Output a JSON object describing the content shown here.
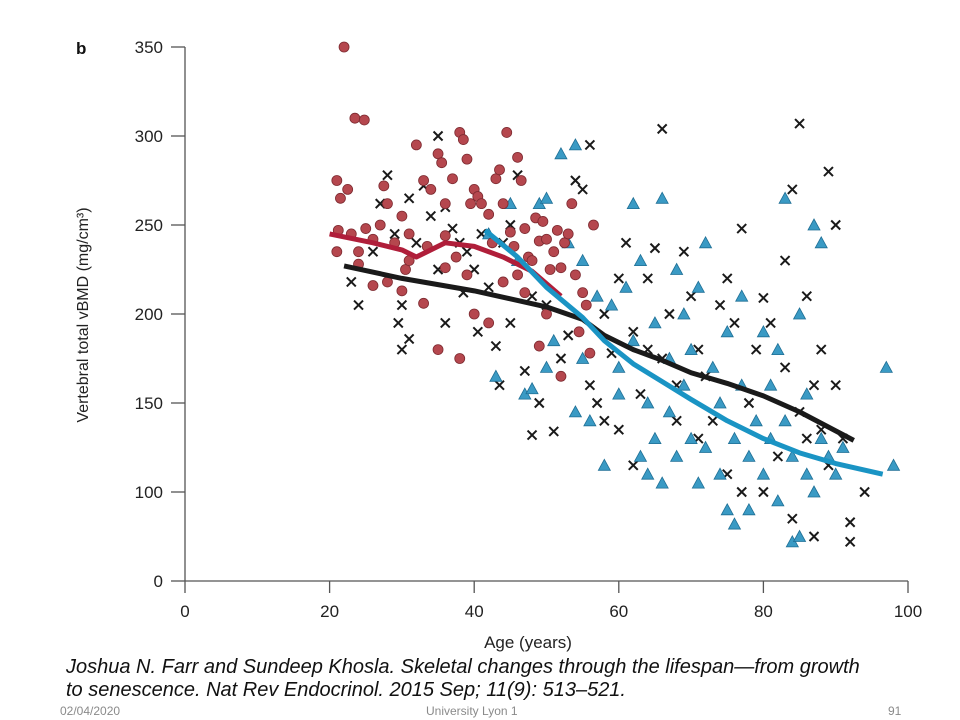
{
  "panel_label": "b",
  "chart_data": {
    "type": "scatter",
    "xlabel": "Age (years)",
    "ylabel": "Vertebral total vBMD (mg/cm³)",
    "xlim": [
      0,
      100
    ],
    "ylim": [
      0,
      350
    ],
    "y_axis_break": "between 0 and 100",
    "xticks": [
      0,
      20,
      40,
      60,
      80,
      100
    ],
    "yticks": [
      0,
      100,
      150,
      200,
      250,
      300,
      350
    ],
    "grid": false,
    "colors": {
      "circles": "#b5474e",
      "crosses": "#1a1a1a",
      "triangles": "#3a9ac4",
      "red_line": "#b01e3a",
      "black_line": "#1a1a1a",
      "blue_line": "#1a94c4"
    },
    "series": [
      {
        "marker": "circle",
        "color": "#b5474e",
        "points": [
          [
            22,
            350
          ],
          [
            23.5,
            310
          ],
          [
            24.8,
            309
          ],
          [
            21,
            275
          ],
          [
            21.5,
            265
          ],
          [
            21.2,
            247
          ],
          [
            22.5,
            270
          ],
          [
            21,
            235
          ],
          [
            23,
            245
          ],
          [
            24,
            235
          ],
          [
            25,
            248
          ],
          [
            26,
            242
          ],
          [
            27,
            250
          ],
          [
            27.5,
            272
          ],
          [
            28,
            262
          ],
          [
            29,
            240
          ],
          [
            30,
            255
          ],
          [
            30.5,
            225
          ],
          [
            31,
            245
          ],
          [
            32,
            295
          ],
          [
            33,
            275
          ],
          [
            33.5,
            238
          ],
          [
            34,
            270
          ],
          [
            35,
            290
          ],
          [
            35.5,
            285
          ],
          [
            36,
            262
          ],
          [
            36,
            244
          ],
          [
            37,
            276
          ],
          [
            37.5,
            232
          ],
          [
            38,
            302
          ],
          [
            38.5,
            298
          ],
          [
            39,
            287
          ],
          [
            39.5,
            262
          ],
          [
            40,
            270
          ],
          [
            40.5,
            266
          ],
          [
            41,
            262
          ],
          [
            42,
            256
          ],
          [
            42.5,
            240
          ],
          [
            43,
            276
          ],
          [
            43.5,
            281
          ],
          [
            44,
            262
          ],
          [
            44.5,
            302
          ],
          [
            45,
            246
          ],
          [
            45.5,
            238
          ],
          [
            46,
            288
          ],
          [
            46.5,
            275
          ],
          [
            47,
            248
          ],
          [
            47.5,
            232
          ],
          [
            48,
            230
          ],
          [
            48.5,
            254
          ],
          [
            49,
            241
          ],
          [
            49.5,
            252
          ],
          [
            50,
            242
          ],
          [
            50.5,
            225
          ],
          [
            51,
            235
          ],
          [
            51.5,
            247
          ],
          [
            52,
            226
          ],
          [
            52.5,
            240
          ],
          [
            53,
            245
          ],
          [
            53.5,
            262
          ],
          [
            54,
            222
          ],
          [
            55,
            212
          ],
          [
            55.5,
            205
          ],
          [
            56,
            178
          ],
          [
            54.5,
            190
          ],
          [
            56.5,
            250
          ],
          [
            44,
            218
          ],
          [
            42,
            195
          ],
          [
            40,
            200
          ],
          [
            38,
            175
          ],
          [
            35,
            180
          ],
          [
            33,
            206
          ],
          [
            30,
            213
          ],
          [
            28,
            218
          ],
          [
            26,
            216
          ],
          [
            24,
            228
          ],
          [
            31,
            230
          ],
          [
            36,
            226
          ],
          [
            39,
            222
          ],
          [
            46,
            222
          ],
          [
            49,
            182
          ],
          [
            52,
            165
          ],
          [
            50,
            200
          ],
          [
            47,
            212
          ]
        ]
      },
      {
        "marker": "cross",
        "color": "#1a1a1a",
        "points": [
          [
            23,
            218
          ],
          [
            24,
            205
          ],
          [
            26,
            235
          ],
          [
            27,
            262
          ],
          [
            28,
            278
          ],
          [
            29,
            245
          ],
          [
            29.5,
            195
          ],
          [
            30,
            180
          ],
          [
            31,
            186
          ],
          [
            30,
            205
          ],
          [
            31,
            265
          ],
          [
            32,
            240
          ],
          [
            33,
            272
          ],
          [
            34,
            255
          ],
          [
            35,
            300
          ],
          [
            35,
            225
          ],
          [
            36,
            260
          ],
          [
            36,
            195
          ],
          [
            37,
            248
          ],
          [
            38,
            240
          ],
          [
            38.5,
            212
          ],
          [
            39,
            235
          ],
          [
            40,
            225
          ],
          [
            40.5,
            190
          ],
          [
            41,
            245
          ],
          [
            42,
            215
          ],
          [
            43,
            182
          ],
          [
            43.5,
            160
          ],
          [
            44,
            240
          ],
          [
            45,
            250
          ],
          [
            45,
            195
          ],
          [
            46,
            278
          ],
          [
            47,
            168
          ],
          [
            48,
            210
          ],
          [
            48,
            132
          ],
          [
            49,
            150
          ],
          [
            50,
            205
          ],
          [
            51,
            134
          ],
          [
            52,
            175
          ],
          [
            53,
            188
          ],
          [
            54,
            275
          ],
          [
            55,
            270
          ],
          [
            56,
            295
          ],
          [
            56,
            160
          ],
          [
            57,
            150
          ],
          [
            58,
            200
          ],
          [
            59,
            178
          ],
          [
            60,
            135
          ],
          [
            60,
            220
          ],
          [
            61,
            240
          ],
          [
            62,
            190
          ],
          [
            63,
            155
          ],
          [
            64,
            220
          ],
          [
            65,
            237
          ],
          [
            66,
            304
          ],
          [
            66,
            175
          ],
          [
            67,
            200
          ],
          [
            68,
            160
          ],
          [
            68,
            140
          ],
          [
            69,
            235
          ],
          [
            70,
            210
          ],
          [
            71,
            180
          ],
          [
            72,
            165
          ],
          [
            73,
            140
          ],
          [
            74,
            205
          ],
          [
            75,
            220
          ],
          [
            76,
            195
          ],
          [
            77,
            248
          ],
          [
            77,
            100
          ],
          [
            78,
            150
          ],
          [
            79,
            180
          ],
          [
            80,
            209
          ],
          [
            80,
            100
          ],
          [
            81,
            195
          ],
          [
            82,
            120
          ],
          [
            83,
            230
          ],
          [
            83,
            170
          ],
          [
            84,
            270
          ],
          [
            84,
            85
          ],
          [
            85,
            307
          ],
          [
            85,
            145
          ],
          [
            86,
            130
          ],
          [
            86,
            210
          ],
          [
            87,
            75
          ],
          [
            87,
            160
          ],
          [
            88,
            180
          ],
          [
            88,
            135
          ],
          [
            89,
            280
          ],
          [
            89,
            115
          ],
          [
            90,
            160
          ],
          [
            90,
            250
          ],
          [
            91,
            130
          ],
          [
            92,
            83
          ],
          [
            92,
            72
          ],
          [
            94,
            100
          ],
          [
            71,
            130
          ],
          [
            64,
            180
          ],
          [
            58,
            140
          ],
          [
            62,
            115
          ],
          [
            75,
            110
          ]
        ]
      },
      {
        "marker": "triangle",
        "color": "#3a9ac4",
        "points": [
          [
            42,
            245
          ],
          [
            43,
            165
          ],
          [
            45,
            262
          ],
          [
            46,
            230
          ],
          [
            47,
            155
          ],
          [
            48,
            158
          ],
          [
            49,
            262
          ],
          [
            50,
            265
          ],
          [
            50,
            170
          ],
          [
            51,
            185
          ],
          [
            52,
            290
          ],
          [
            53,
            240
          ],
          [
            54,
            295
          ],
          [
            54,
            145
          ],
          [
            55,
            230
          ],
          [
            55,
            175
          ],
          [
            56,
            140
          ],
          [
            57,
            210
          ],
          [
            58,
            115
          ],
          [
            59,
            205
          ],
          [
            60,
            170
          ],
          [
            61,
            215
          ],
          [
            62,
            262
          ],
          [
            62,
            185
          ],
          [
            63,
            120
          ],
          [
            63,
            230
          ],
          [
            64,
            150
          ],
          [
            65,
            195
          ],
          [
            65,
            130
          ],
          [
            66,
            265
          ],
          [
            66,
            105
          ],
          [
            67,
            175
          ],
          [
            67,
            145
          ],
          [
            68,
            225
          ],
          [
            68,
            120
          ],
          [
            69,
            200
          ],
          [
            69,
            160
          ],
          [
            70,
            130
          ],
          [
            70,
            180
          ],
          [
            71,
            215
          ],
          [
            72,
            125
          ],
          [
            72,
            240
          ],
          [
            73,
            170
          ],
          [
            74,
            150
          ],
          [
            74,
            110
          ],
          [
            75,
            190
          ],
          [
            75,
            90
          ],
          [
            76,
            130
          ],
          [
            76,
            82
          ],
          [
            77,
            160
          ],
          [
            77,
            210
          ],
          [
            78,
            90
          ],
          [
            78,
            120
          ],
          [
            79,
            140
          ],
          [
            80,
            190
          ],
          [
            80,
            110
          ],
          [
            81,
            160
          ],
          [
            81,
            130
          ],
          [
            82,
            180
          ],
          [
            82,
            95
          ],
          [
            83,
            265
          ],
          [
            83,
            140
          ],
          [
            84,
            120
          ],
          [
            84,
            72
          ],
          [
            85,
            75
          ],
          [
            85,
            200
          ],
          [
            86,
            110
          ],
          [
            86,
            155
          ],
          [
            87,
            250
          ],
          [
            87,
            100
          ],
          [
            88,
            240
          ],
          [
            88,
            130
          ],
          [
            89,
            120
          ],
          [
            90,
            110
          ],
          [
            91,
            125
          ],
          [
            97,
            170
          ],
          [
            98,
            115
          ],
          [
            60,
            155
          ],
          [
            64,
            110
          ],
          [
            71,
            105
          ]
        ]
      }
    ],
    "lines": [
      {
        "color": "#b01e3a",
        "points": [
          [
            20,
            245
          ],
          [
            26,
            240
          ],
          [
            30,
            236
          ],
          [
            32,
            232
          ],
          [
            36,
            240
          ],
          [
            40,
            238
          ],
          [
            44,
            232
          ],
          [
            48,
            224
          ],
          [
            52,
            210
          ]
        ]
      },
      {
        "color": "#1a1a1a",
        "points": [
          [
            22,
            227
          ],
          [
            30,
            220
          ],
          [
            40,
            213
          ],
          [
            50,
            204
          ],
          [
            55,
            197
          ],
          [
            58,
            188
          ],
          [
            62,
            180
          ],
          [
            66,
            174
          ],
          [
            70,
            167
          ],
          [
            75,
            161
          ],
          [
            80,
            154
          ],
          [
            85,
            145
          ],
          [
            92.5,
            129
          ]
        ]
      },
      {
        "color": "#1a94c4",
        "points": [
          [
            41.5,
            247
          ],
          [
            46,
            232
          ],
          [
            50,
            215
          ],
          [
            55,
            198
          ],
          [
            58,
            185
          ],
          [
            62,
            172
          ],
          [
            66,
            162
          ],
          [
            70,
            152
          ],
          [
            75,
            140
          ],
          [
            80,
            130
          ],
          [
            85,
            122
          ],
          [
            90,
            116
          ],
          [
            96.5,
            110
          ]
        ]
      }
    ]
  },
  "citation": {
    "line1": "Joshua N. Farr and Sundeep Khosla. Skeletal changes through the lifespan—from growth",
    "line2": "to senescence. Nat Rev Endocrinol. 2015 Sep; 11(9): 513–521."
  },
  "footer": {
    "date": "02/04/2020",
    "institution": "University Lyon 1",
    "page": "91"
  }
}
